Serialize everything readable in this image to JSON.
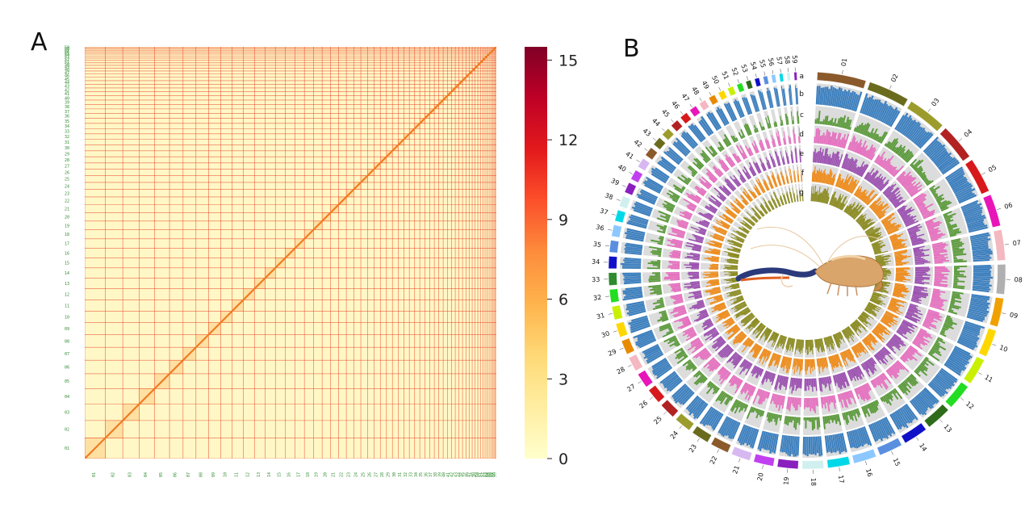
{
  "panels": {
    "a_letter": "A",
    "b_letter": "B"
  },
  "chart_data": [
    {
      "type": "heatmap",
      "title": "",
      "xlabel": "",
      "ylabel": "",
      "colorbar": {
        "range": [
          0,
          15.5
        ],
        "ticks": [
          0,
          3,
          6,
          9,
          12,
          15
        ],
        "colormap": "YlOrRd",
        "colors": [
          "#ffffcc",
          "#ffeda0",
          "#fed976",
          "#feb24c",
          "#fd8d3c",
          "#fc4e2a",
          "#e31a1c",
          "#bd0026",
          "#800026"
        ]
      },
      "sequences": 59,
      "diagonal_signal": "high",
      "off_diagonal_signal": "low"
    },
    {
      "type": "circos",
      "title": "",
      "chromosomes": [
        "01",
        "02",
        "03",
        "04",
        "05",
        "06",
        "07",
        "08",
        "09",
        "10",
        "11",
        "12",
        "13",
        "14",
        "15",
        "16",
        "17",
        "18",
        "19",
        "20",
        "21",
        "22",
        "23",
        "24",
        "25",
        "26",
        "27",
        "28",
        "29",
        "30",
        "31",
        "32",
        "33",
        "34",
        "35",
        "36",
        "37",
        "38",
        "39",
        "40",
        "41",
        "42",
        "43",
        "44",
        "45",
        "46",
        "47",
        "48",
        "49",
        "50",
        "51",
        "52",
        "53",
        "54",
        "55",
        "56",
        "57",
        "58",
        "59"
      ],
      "chromosome_sizes": [
        128,
        108,
        102,
        96,
        92,
        84,
        80,
        78,
        75,
        72,
        70,
        68,
        66,
        64,
        62,
        60,
        58,
        56,
        54,
        52,
        50,
        48,
        46,
        44,
        42,
        40,
        39,
        38,
        37,
        36,
        35,
        34,
        33,
        32,
        31,
        30,
        29,
        28,
        27,
        26,
        25,
        24,
        23,
        22,
        21,
        20,
        19,
        18,
        17,
        16,
        15,
        14,
        13,
        12,
        11,
        10,
        9,
        8,
        7
      ],
      "chromosome_colors": [
        "#8b5a2b",
        "#6b6b1e",
        "#9c9c2c",
        "#b22222",
        "#d7191c",
        "#e815b8",
        "#f4b8c0",
        "#b0b0b0",
        "#f0a000",
        "#ffd700",
        "#c8f000",
        "#22dd22",
        "#2e6b1a",
        "#1010c8",
        "#5a8fe0",
        "#8cc8ff",
        "#00d8e8",
        "#d0f0f0",
        "#8a1fbf",
        "#c040f0",
        "#d8b8f0",
        "#8b5a2b",
        "#6b6b1e",
        "#9c9c2c",
        "#b22222",
        "#d7191c",
        "#e815b8",
        "#f4b8c0",
        "#e88a00",
        "#ffd700",
        "#c8f000",
        "#22dd22",
        "#2e8b2e",
        "#1010c8",
        "#5a8fe0",
        "#8cc8ff",
        "#00d8e8",
        "#d0f0f0",
        "#8a1fbf",
        "#c040f0",
        "#d8b8f0",
        "#8b5a2b",
        "#6b6b1e",
        "#9c9c2c",
        "#b22222",
        "#d7191c",
        "#e815b8",
        "#f4b8c0",
        "#e88a00",
        "#ffd700",
        "#c8f000",
        "#22dd22",
        "#2e6b1a",
        "#1010c8",
        "#5a8fe0",
        "#8cc8ff",
        "#00d8e8",
        "#d0f0f0",
        "#8a1fbf"
      ],
      "tracks": [
        {
          "id": "a",
          "kind": "ideogram"
        },
        {
          "id": "b",
          "kind": "histogram",
          "color": "#3b7fbf"
        },
        {
          "id": "c",
          "kind": "histogram",
          "color": "#5a9a3a"
        },
        {
          "id": "d",
          "kind": "histogram",
          "color": "#e66fbf"
        },
        {
          "id": "e",
          "kind": "histogram",
          "color": "#9b4fb0"
        },
        {
          "id": "f",
          "kind": "histogram",
          "color": "#ef8a17"
        },
        {
          "id": "g",
          "kind": "histogram",
          "color": "#8a8a1e"
        }
      ],
      "center_image": "shrimp"
    }
  ]
}
